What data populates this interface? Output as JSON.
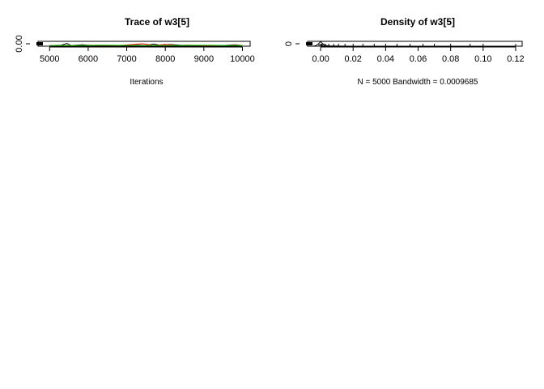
{
  "chart_data": [
    {
      "type": "line",
      "title": "Trace of w3[5]",
      "xlabel": "Iterations",
      "ylabel": "",
      "xlim": [
        4700,
        10200
      ],
      "ylim": [
        -0.002,
        0.012
      ],
      "x_ticks": [
        5000,
        6000,
        7000,
        8000,
        9000,
        10000
      ],
      "x_tick_labels": [
        "5000",
        "6000",
        "7000",
        "8000",
        "9000",
        "10000"
      ],
      "y_ticks": [
        0.0
      ],
      "y_tick_labels": [
        "0.00"
      ],
      "grid": false,
      "colors": [
        "#000000",
        "#ff0000",
        "#00cd00"
      ],
      "series": [
        {
          "x": [
            5000,
            5300,
            5450,
            5550,
            5850,
            6100,
            6500,
            6900,
            7300,
            7500,
            7700,
            7900,
            8100,
            8400,
            8800,
            9100,
            9500,
            9800,
            10000
          ],
          "y": [
            0.0,
            0.001,
            0.006,
            0.0,
            0.002,
            0.0,
            0.0,
            0.0,
            0.001,
            0.0,
            0.004,
            0.0,
            0.003,
            0.001,
            0.0,
            0.0,
            0.0,
            0.002,
            0.0
          ]
        },
        {
          "x": [
            5000,
            5600,
            6200,
            6800,
            7400,
            7700,
            8000,
            8300,
            8600,
            9000,
            9400,
            9800,
            10000
          ],
          "y": [
            0.0,
            0.0,
            0.001,
            0.0,
            0.005,
            0.0,
            0.003,
            0.0,
            0.001,
            0.0,
            0.0,
            0.001,
            0.0
          ]
        },
        {
          "x": [
            5000,
            5800,
            6600,
            7400,
            8200,
            9000,
            9800,
            10000
          ],
          "y": [
            0.0,
            0.0,
            0.001,
            0.0,
            0.0,
            0.001,
            0.0,
            0.0
          ]
        }
      ]
    },
    {
      "type": "line",
      "title": "Density of w3[5]",
      "xlabel": "N = 5000   Bandwidth = 0.0009685",
      "ylabel": "",
      "xlim": [
        -0.008,
        0.124
      ],
      "ylim": [
        0,
        420
      ],
      "x_ticks": [
        0.0,
        0.02,
        0.04,
        0.06,
        0.08,
        0.1,
        0.12
      ],
      "x_tick_labels": [
        "0.00",
        "0.02",
        "0.04",
        "0.06",
        "0.08",
        "0.10",
        "0.12"
      ],
      "y_ticks": [
        0
      ],
      "y_tick_labels": [
        "0"
      ],
      "grid": false,
      "colors": [
        "#000000"
      ],
      "series": [
        {
          "x": [
            -0.005,
            -0.003,
            -0.0015,
            0.0,
            0.001,
            0.002,
            0.003,
            0.005,
            0.008,
            0.012,
            0.02,
            0.03,
            0.045,
            0.06,
            0.08,
            0.1,
            0.12
          ],
          "y": [
            0,
            40,
            180,
            400,
            260,
            120,
            60,
            25,
            12,
            6,
            3,
            2,
            1,
            0.5,
            0.3,
            0.1,
            0
          ]
        }
      ],
      "rug": [
        -0.001,
        0.0,
        0.0005,
        0.001,
        0.002,
        0.003,
        0.005,
        0.008,
        0.011,
        0.015,
        0.02,
        0.026,
        0.033,
        0.04,
        0.047,
        0.055,
        0.063,
        0.07,
        0.08,
        0.092,
        0.1,
        0.12
      ]
    }
  ]
}
